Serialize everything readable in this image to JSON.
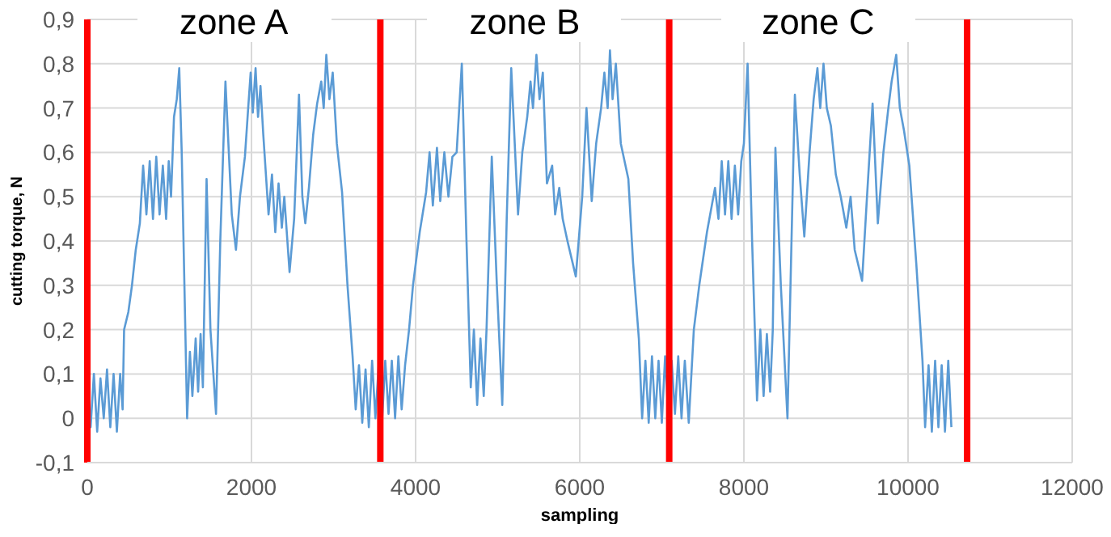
{
  "chart_data": {
    "type": "line",
    "xlabel": "sampling",
    "ylabel": "cutting torque, N",
    "x": [
      0,
      40,
      80,
      120,
      160,
      200,
      240,
      280,
      320,
      360,
      400,
      430,
      448,
      500,
      544,
      590,
      640,
      680,
      720,
      760,
      800,
      840,
      880,
      920,
      960,
      992,
      1020,
      1056,
      1090,
      1120,
      1150,
      1216,
      1250,
      1280,
      1320,
      1350,
      1380,
      1408,
      1453,
      1500,
      1568,
      1620,
      1683,
      1760,
      1811,
      1860,
      1920,
      1960,
      1990,
      2016,
      2050,
      2080,
      2110,
      2144,
      2208,
      2250,
      2290,
      2330,
      2370,
      2400,
      2464,
      2520,
      2579,
      2620,
      2656,
      2700,
      2752,
      2800,
      2850,
      2880,
      2912,
      2950,
      2990,
      3040,
      3104,
      3170,
      3232,
      3270,
      3310,
      3350,
      3390,
      3430,
      3470,
      3510,
      3550,
      3590,
      3630,
      3670,
      3710,
      3750,
      3790,
      3830,
      3872,
      3920,
      3968,
      4050,
      4128,
      4170,
      4210,
      4260,
      4300,
      4350,
      4400,
      4448,
      4500,
      4563,
      4620,
      4672,
      4710,
      4750,
      4790,
      4830,
      4864,
      4928,
      4990,
      5056,
      5110,
      5165,
      5248,
      5300,
      5360,
      5400,
      5430,
      5472,
      5510,
      5550,
      5600,
      5664,
      5700,
      5750,
      5792,
      5850,
      5952,
      6030,
      6082,
      6146,
      6200,
      6260,
      6300,
      6340,
      6368,
      6400,
      6440,
      6500,
      6592,
      6650,
      6720,
      6760,
      6800,
      6840,
      6880,
      6920,
      6960,
      7000,
      7040,
      7080,
      7120,
      7160,
      7200,
      7240,
      7280,
      7328,
      7390,
      7456,
      7550,
      7648,
      7690,
      7730,
      7770,
      7810,
      7850,
      7890,
      7930,
      7968,
      8000,
      8045,
      8100,
      8160,
      8200,
      8240,
      8280,
      8320,
      8352,
      8384,
      8450,
      8531,
      8580,
      8621,
      8680,
      8736,
      8800,
      8850,
      8896,
      8930,
      8970,
      9010,
      9060,
      9120,
      9180,
      9248,
      9300,
      9350,
      9440,
      9500,
      9568,
      9632,
      9700,
      9760,
      9800,
      9856,
      9900,
      9950,
      10016,
      10100,
      10176,
      10208,
      10250,
      10290,
      10330,
      10370,
      10410,
      10450,
      10490,
      10528
    ],
    "series": [
      {
        "color": "#5b9bd5",
        "values": [
          0.08,
          -0.02,
          0.1,
          -0.03,
          0.09,
          0.0,
          0.11,
          -0.02,
          0.1,
          -0.03,
          0.1,
          0.02,
          0.2,
          0.24,
          0.3,
          0.38,
          0.44,
          0.57,
          0.46,
          0.58,
          0.45,
          0.59,
          0.46,
          0.57,
          0.45,
          0.58,
          0.5,
          0.68,
          0.72,
          0.79,
          0.6,
          0.0,
          0.15,
          0.05,
          0.18,
          0.06,
          0.19,
          0.07,
          0.54,
          0.2,
          0.01,
          0.4,
          0.76,
          0.46,
          0.38,
          0.5,
          0.59,
          0.7,
          0.78,
          0.69,
          0.79,
          0.68,
          0.75,
          0.64,
          0.46,
          0.55,
          0.42,
          0.53,
          0.43,
          0.5,
          0.33,
          0.45,
          0.73,
          0.5,
          0.44,
          0.52,
          0.64,
          0.71,
          0.76,
          0.7,
          0.82,
          0.72,
          0.78,
          0.62,
          0.51,
          0.3,
          0.14,
          0.02,
          0.12,
          -0.01,
          0.11,
          -0.02,
          0.13,
          0.0,
          0.12,
          -0.01,
          0.13,
          0.01,
          0.13,
          0.0,
          0.14,
          0.02,
          0.12,
          0.2,
          0.3,
          0.42,
          0.51,
          0.6,
          0.48,
          0.61,
          0.49,
          0.6,
          0.5,
          0.59,
          0.6,
          0.8,
          0.4,
          0.07,
          0.2,
          0.03,
          0.18,
          0.05,
          0.2,
          0.59,
          0.3,
          0.03,
          0.45,
          0.79,
          0.46,
          0.6,
          0.68,
          0.76,
          0.7,
          0.82,
          0.72,
          0.78,
          0.53,
          0.57,
          0.46,
          0.52,
          0.45,
          0.4,
          0.32,
          0.5,
          0.7,
          0.49,
          0.62,
          0.7,
          0.78,
          0.7,
          0.83,
          0.72,
          0.8,
          0.62,
          0.54,
          0.35,
          0.18,
          0.0,
          0.13,
          -0.01,
          0.14,
          0.0,
          0.13,
          -0.01,
          0.14,
          0.0,
          0.13,
          0.01,
          0.14,
          0.0,
          0.13,
          -0.01,
          0.2,
          0.3,
          0.42,
          0.52,
          0.45,
          0.58,
          0.46,
          0.58,
          0.45,
          0.57,
          0.46,
          0.58,
          0.62,
          0.8,
          0.4,
          0.04,
          0.2,
          0.05,
          0.19,
          0.06,
          0.2,
          0.61,
          0.3,
          0.0,
          0.4,
          0.73,
          0.55,
          0.41,
          0.6,
          0.72,
          0.79,
          0.7,
          0.8,
          0.7,
          0.66,
          0.55,
          0.5,
          0.43,
          0.5,
          0.38,
          0.31,
          0.5,
          0.71,
          0.44,
          0.6,
          0.7,
          0.76,
          0.82,
          0.7,
          0.65,
          0.57,
          0.35,
          0.13,
          -0.02,
          0.12,
          -0.03,
          0.13,
          -0.02,
          0.12,
          -0.03,
          0.13,
          -0.02
        ]
      }
    ],
    "xlim": [
      0,
      12000
    ],
    "xticks": [
      0,
      2000,
      4000,
      6000,
      8000,
      10000,
      12000
    ],
    "ylim": [
      -0.1,
      0.9
    ],
    "yticks": [
      {
        "value": -0.1,
        "label": "-0,1"
      },
      {
        "value": 0,
        "label": "0"
      },
      {
        "value": 0.1,
        "label": "0,1"
      },
      {
        "value": 0.2,
        "label": "0,2"
      },
      {
        "value": 0.3,
        "label": "0,3"
      },
      {
        "value": 0.4,
        "label": "0,4"
      },
      {
        "value": 0.5,
        "label": "0,5"
      },
      {
        "value": 0.6,
        "label": "0,6"
      },
      {
        "value": 0.7,
        "label": "0,7"
      },
      {
        "value": 0.8,
        "label": "0,8"
      },
      {
        "value": 0.9,
        "label": "0,9"
      }
    ],
    "grid": true,
    "legend": false,
    "marker": "none",
    "line_style": "solid",
    "ref_lines": [
      {
        "axis": "x",
        "value": 0,
        "label": null,
        "color": "#ff0000"
      },
      {
        "axis": "x",
        "value": 3570,
        "label": null,
        "color": "#ff0000"
      },
      {
        "axis": "x",
        "value": 7090,
        "label": null,
        "color": "#ff0000"
      },
      {
        "axis": "x",
        "value": 10720,
        "label": null,
        "color": "#ff0000"
      }
    ],
    "annotations": [
      "zone A",
      "zone B",
      "zone C"
    ]
  }
}
